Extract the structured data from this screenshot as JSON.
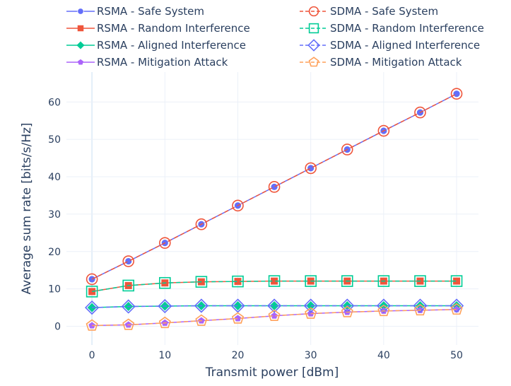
{
  "chart_data": {
    "type": "line",
    "title": "",
    "xlabel": "Transmit power [dBm]",
    "ylabel": "Average sum rate [bits/s/Hz]",
    "x": [
      0,
      5,
      10,
      15,
      20,
      25,
      30,
      35,
      40,
      45,
      50
    ],
    "xlim": [
      -3.5,
      53
    ],
    "ylim": [
      -5,
      68
    ],
    "xticks": [
      0,
      10,
      20,
      30,
      40,
      50
    ],
    "yticks": [
      0,
      10,
      20,
      30,
      40,
      50,
      60
    ],
    "grid": true,
    "legend_position": "top",
    "series": [
      {
        "name": "RSMA - Safe System",
        "color": "#636efa",
        "line_style": "solid",
        "marker": "circle",
        "values": [
          12.6,
          17.4,
          22.3,
          27.3,
          32.3,
          37.3,
          42.3,
          47.3,
          52.3,
          57.2,
          62.2
        ]
      },
      {
        "name": "RSMA - Random Interference",
        "color": "#ef553b",
        "line_style": "solid",
        "marker": "square",
        "values": [
          9.3,
          10.9,
          11.6,
          11.9,
          12.0,
          12.1,
          12.1,
          12.1,
          12.1,
          12.1,
          12.1
        ]
      },
      {
        "name": "RSMA - Aligned Interference",
        "color": "#00cc96",
        "line_style": "solid",
        "marker": "diamond",
        "values": [
          5.0,
          5.3,
          5.4,
          5.5,
          5.5,
          5.5,
          5.5,
          5.5,
          5.5,
          5.5,
          5.5
        ]
      },
      {
        "name": "RSMA - Mitigation Attack",
        "color": "#ab63fa",
        "line_style": "solid",
        "marker": "pentagon",
        "values": [
          0.2,
          0.4,
          0.9,
          1.5,
          2.1,
          2.8,
          3.4,
          3.8,
          4.1,
          4.3,
          4.5
        ]
      },
      {
        "name": "SDMA - Safe System",
        "color": "#ef553b",
        "line_style": "dash",
        "marker": "circle-open",
        "values": [
          12.6,
          17.4,
          22.3,
          27.3,
          32.3,
          37.3,
          42.3,
          47.3,
          52.3,
          57.2,
          62.2
        ]
      },
      {
        "name": "SDMA - Random Interference",
        "color": "#00cc96",
        "line_style": "dash",
        "marker": "square-open",
        "values": [
          9.3,
          10.9,
          11.6,
          11.9,
          12.0,
          12.1,
          12.1,
          12.1,
          12.1,
          12.1,
          12.1
        ]
      },
      {
        "name": "SDMA - Aligned Interference",
        "color": "#636efa",
        "line_style": "dash",
        "marker": "diamond-open",
        "values": [
          5.0,
          5.3,
          5.4,
          5.5,
          5.5,
          5.5,
          5.5,
          5.5,
          5.5,
          5.5,
          5.5
        ]
      },
      {
        "name": "SDMA - Mitigation Attack",
        "color": "#ffa15a",
        "line_style": "dash",
        "marker": "pentagon-open",
        "values": [
          0.2,
          0.4,
          0.9,
          1.5,
          2.1,
          2.8,
          3.4,
          3.8,
          4.1,
          4.3,
          4.5
        ]
      }
    ]
  }
}
